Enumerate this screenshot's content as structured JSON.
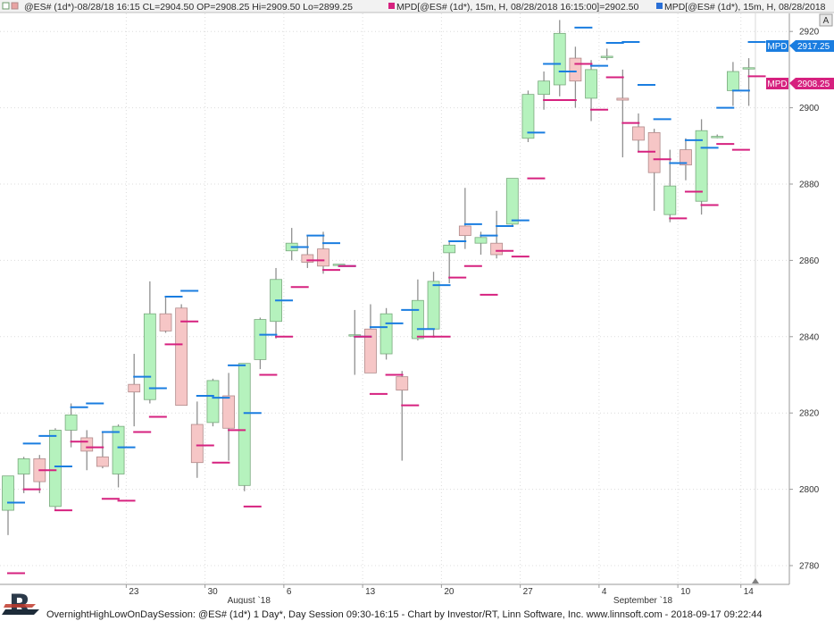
{
  "header": {
    "series1_text": "@ES# (1d*)-08/28/18 16:15 CL=2904.50 OP=2908.25 Hi=2909.50 Lo=2899.25",
    "series2_text": "MPD[@ES# (1d*), 15m, H, 08/28/2018 16:15:00]=2902.50",
    "series3_text": "MPD[@ES# (1d*), 15m, H, 08/28/2018",
    "colors": {
      "series1": "#e9a3a3",
      "series2": "#d6217f",
      "series3": "#2a6fd6"
    }
  },
  "panel_button": {
    "label": "A"
  },
  "markers": [
    {
      "label": "MPD",
      "value": "2917.25",
      "color": "#1a7de0"
    },
    {
      "label": "MPD",
      "value": "2908.25",
      "color": "#d6217f"
    }
  ],
  "footer": {
    "text": "OvernightHighLowOnDaySession: @ES# (1d*) 1 Day*, Day Session 09:30-16:15 - Chart by Investor/RT, Linn Software, Inc. www.linnsoft.com - 2018-09-17 09:22:44",
    "logo_letter": "R"
  },
  "colors": {
    "up_fill": "#b5f2bd",
    "up_stroke": "#7aa97e",
    "down_fill": "#f6c6c6",
    "down_stroke": "#b08a8a",
    "wick": "#909090",
    "high_mark": "#1a7de0",
    "low_mark": "#d6217f",
    "grid": "#dcdcdc"
  },
  "chart_data": {
    "type": "candlestick",
    "title": "",
    "xlabel": "",
    "ylabel": "",
    "ylim": [
      2775,
      2925
    ],
    "y_ticks": [
      2780,
      2800,
      2820,
      2840,
      2860,
      2880,
      2900,
      2920
    ],
    "x_ticks": [
      {
        "label": "23",
        "index": 8
      },
      {
        "label": "30",
        "index": 13
      },
      {
        "label": "6",
        "index": 18
      },
      {
        "label": "13",
        "index": 23
      },
      {
        "label": "20",
        "index": 28
      },
      {
        "label": "27",
        "index": 33
      },
      {
        "label": "4",
        "index": 38
      },
      {
        "label": "10",
        "index": 43
      },
      {
        "label": "14",
        "index": 47
      }
    ],
    "x_month_labels": [
      {
        "label": "August `18",
        "index": 15
      },
      {
        "label": "September `18",
        "index": 40
      }
    ],
    "candles": [
      {
        "o": 2794.5,
        "h": 2803.5,
        "l": 2788,
        "c": 2803.5,
        "mh": 2796.5,
        "ml": 2778
      },
      {
        "o": 2804,
        "h": 2808.5,
        "l": 2799,
        "c": 2808,
        "mh": 2812,
        "ml": 2800
      },
      {
        "o": 2808,
        "h": 2809,
        "l": 2799,
        "c": 2802,
        "mh": 2814,
        "ml": 2805
      },
      {
        "o": 2795.5,
        "h": 2816,
        "l": 2794.5,
        "c": 2815.5,
        "mh": 2806,
        "ml": 2794.5
      },
      {
        "o": 2815.5,
        "h": 2822.5,
        "l": 2811,
        "c": 2819.5,
        "mh": 2821.5,
        "ml": 2812.5
      },
      {
        "o": 2813.5,
        "h": 2815.5,
        "l": 2805,
        "c": 2810,
        "mh": 2822.5,
        "ml": 2811
      },
      {
        "o": 2808.5,
        "h": 2815,
        "l": 2805.5,
        "c": 2806,
        "mh": 2815,
        "ml": 2797.5
      },
      {
        "o": 2804,
        "h": 2817,
        "l": 2800.5,
        "c": 2816.5,
        "mh": 2811,
        "ml": 2797
      },
      {
        "o": 2827.5,
        "h": 2835.5,
        "l": 2816.5,
        "c": 2825.5,
        "mh": 2829.5,
        "ml": 2815
      },
      {
        "o": 2823.5,
        "h": 2854.5,
        "l": 2822.5,
        "c": 2846,
        "mh": 2826.5,
        "ml": 2819
      },
      {
        "o": 2846,
        "h": 2850.5,
        "l": 2841,
        "c": 2841.5,
        "mh": 2850.5,
        "ml": 2838
      },
      {
        "o": 2847.5,
        "h": 2848.5,
        "l": 2822,
        "c": 2822,
        "mh": 2852,
        "ml": 2844
      },
      {
        "o": 2817,
        "h": 2823,
        "l": 2803,
        "c": 2807,
        "mh": 2824.5,
        "ml": 2811.5
      },
      {
        "o": 2817.5,
        "h": 2829,
        "l": 2816.5,
        "c": 2828.5,
        "mh": 2824,
        "ml": 2807
      },
      {
        "o": 2824.5,
        "h": 2830.5,
        "l": 2807.5,
        "c": 2816,
        "mh": 2832.5,
        "ml": 2815.5
      },
      {
        "o": 2801,
        "h": 2833,
        "l": 2799.5,
        "c": 2833,
        "mh": 2820,
        "ml": 2795.5
      },
      {
        "o": 2834,
        "h": 2845,
        "l": 2831.5,
        "c": 2844.5,
        "mh": 2840.5,
        "ml": 2830
      },
      {
        "o": 2844,
        "h": 2858,
        "l": 2839.5,
        "c": 2855,
        "mh": 2849.5,
        "ml": 2840
      },
      {
        "o": 2862.5,
        "h": 2868.5,
        "l": 2860,
        "c": 2864.5,
        "mh": 2863.5,
        "ml": 2853
      },
      {
        "o": 2861.5,
        "h": 2866.5,
        "l": 2858,
        "c": 2859.5,
        "mh": 2866.5,
        "ml": 2860
      },
      {
        "o": 2863,
        "h": 2867.5,
        "l": 2856.5,
        "c": 2858.5,
        "mh": 2864.5,
        "ml": 2857.5
      },
      {
        "o": 2859,
        "h": 2859,
        "l": 2859,
        "c": 2859,
        "mh": 2858.5,
        "ml": 2858.5
      },
      {
        "o": 2840.5,
        "h": 2847,
        "l": 2830,
        "c": 2840.5,
        "mh": 2840,
        "ml": 2840
      },
      {
        "o": 2842,
        "h": 2848.5,
        "l": 2831,
        "c": 2830.5,
        "mh": 2842.5,
        "ml": 2825
      },
      {
        "o": 2835.5,
        "h": 2847.5,
        "l": 2834,
        "c": 2846,
        "mh": 2843.5,
        "ml": 2830
      },
      {
        "o": 2829.5,
        "h": 2831,
        "l": 2807.5,
        "c": 2826,
        "mh": 2847,
        "ml": 2822
      },
      {
        "o": 2839.5,
        "h": 2855,
        "l": 2839,
        "c": 2849.5,
        "mh": 2842,
        "ml": 2840
      },
      {
        "o": 2842,
        "h": 2857,
        "l": 2840,
        "c": 2854.5,
        "mh": 2853.5,
        "ml": 2840
      },
      {
        "o": 2862,
        "h": 2865,
        "l": 2854,
        "c": 2864,
        "mh": 2865,
        "ml": 2855.5
      },
      {
        "o": 2869,
        "h": 2879,
        "l": 2863,
        "c": 2866.5,
        "mh": 2869.5,
        "ml": 2858.5
      },
      {
        "o": 2864.5,
        "h": 2867.5,
        "l": 2861.5,
        "c": 2866,
        "mh": 2866.5,
        "ml": 2851
      },
      {
        "o": 2864.5,
        "h": 2873,
        "l": 2860.5,
        "c": 2861.5,
        "mh": 2869,
        "ml": 2862.5
      },
      {
        "o": 2869.5,
        "h": 2881.5,
        "l": 2869,
        "c": 2881.5,
        "mh": 2870.5,
        "ml": 2861
      },
      {
        "o": 2892,
        "h": 2904.5,
        "l": 2891,
        "c": 2903.5,
        "mh": 2893.5,
        "ml": 2881.5
      },
      {
        "o": 2903.5,
        "h": 2909.5,
        "l": 2899.5,
        "c": 2907,
        "mh": 2911.5,
        "ml": 2902
      },
      {
        "o": 2906,
        "h": 2923,
        "l": 2903,
        "c": 2919.5,
        "mh": 2909.5,
        "ml": 2902
      },
      {
        "o": 2913,
        "h": 2916,
        "l": 2900,
        "c": 2907,
        "mh": 2921,
        "ml": 2911.5
      },
      {
        "o": 2902.5,
        "h": 2912.5,
        "l": 2896.5,
        "c": 2910,
        "mh": 2911,
        "ml": 2899.5
      },
      {
        "o": 2913.5,
        "h": 2915.5,
        "l": 2912.5,
        "c": 2913.5,
        "mh": 2917,
        "ml": 2908
      },
      {
        "o": 2902.5,
        "h": 2910,
        "l": 2887,
        "c": 2902,
        "mh": 2917.25,
        "ml": 2896
      },
      {
        "o": 2895,
        "h": 2898.5,
        "l": 2888.5,
        "c": 2891.5,
        "mh": 2906,
        "ml": 2888.5
      },
      {
        "o": 2893.5,
        "h": 2894.5,
        "l": 2873,
        "c": 2883,
        "mh": 2897,
        "ml": 2886.5
      },
      {
        "o": 2872,
        "h": 2889,
        "l": 2870,
        "c": 2879.5,
        "mh": 2885.5,
        "ml": 2871
      },
      {
        "o": 2889,
        "h": 2892,
        "l": 2881,
        "c": 2885,
        "mh": 2891.5,
        "ml": 2878
      },
      {
        "o": 2875.5,
        "h": 2897,
        "l": 2872,
        "c": 2894,
        "mh": 2889.5,
        "ml": 2874.5
      },
      {
        "o": 2892.5,
        "h": 2893,
        "l": 2892,
        "c": 2892.5,
        "mh": 2900,
        "ml": 2890.5
      },
      {
        "o": 2904.5,
        "h": 2912,
        "l": 2900.5,
        "c": 2909.5,
        "mh": 2904.5,
        "ml": 2889
      },
      {
        "o": 2910.5,
        "h": 2913,
        "l": 2900.5,
        "c": 2910.5,
        "mh": 2917.25,
        "ml": 2908.25
      }
    ]
  }
}
